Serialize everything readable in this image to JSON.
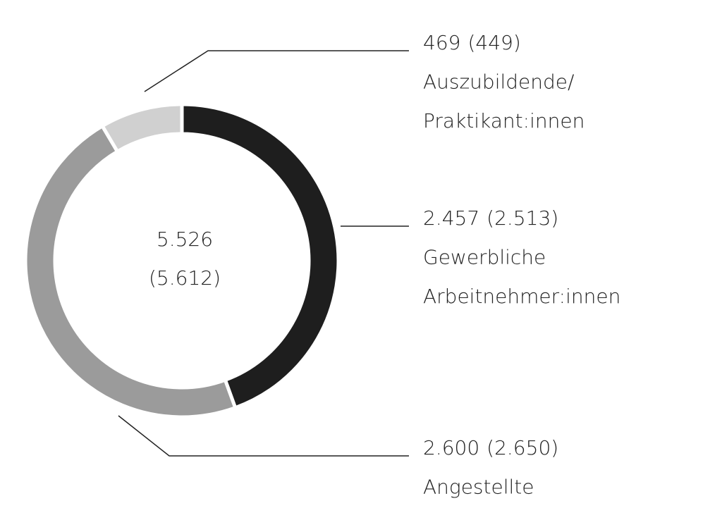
{
  "chart_data": {
    "type": "donut",
    "categories": [
      [
        "Gewerbliche",
        "Arbeitnehmer:innen"
      ],
      [
        "Angestellte"
      ],
      [
        "Auszubildende/",
        "Praktikant:innen"
      ]
    ],
    "values": [
      2457,
      2600,
      469
    ],
    "value_labels": [
      "2.457",
      "2.600",
      "469"
    ],
    "previous_values": [
      2513,
      2650,
      449
    ],
    "previous_value_labels": [
      "(2.513)",
      "(2.650)",
      "(449)"
    ],
    "colors": [
      "#1e1e1e",
      "#9b9b9b",
      "#d0d0d0"
    ],
    "total": 5526,
    "total_label": "5.526",
    "previous_total": 5612,
    "previous_total_label": "(5.612)"
  }
}
